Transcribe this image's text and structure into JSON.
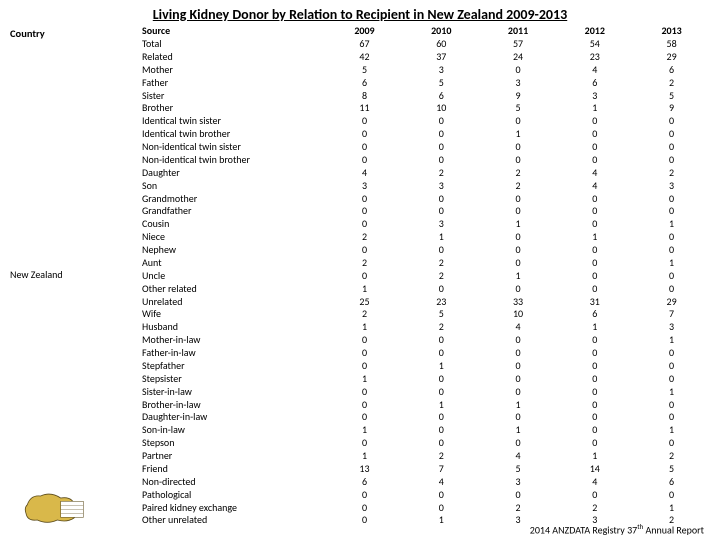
{
  "title": "Living Kidney Donor by Relation to Recipient in New Zealand 2009-2013",
  "country_header": "Country",
  "country_value": "New Zealand",
  "columns": [
    "Source",
    "2009",
    "2010",
    "2011",
    "2012",
    "2013"
  ],
  "rows": [
    {
      "label": "Total",
      "v": [
        "67",
        "60",
        "57",
        "54",
        "58"
      ]
    },
    {
      "label": "Related",
      "v": [
        "42",
        "37",
        "24",
        "23",
        "29"
      ]
    },
    {
      "label": "Mother",
      "v": [
        "5",
        "3",
        "0",
        "4",
        "6"
      ]
    },
    {
      "label": "Father",
      "v": [
        "6",
        "5",
        "3",
        "6",
        "2"
      ]
    },
    {
      "label": "Sister",
      "v": [
        "8",
        "6",
        "9",
        "3",
        "5"
      ]
    },
    {
      "label": "Brother",
      "v": [
        "11",
        "10",
        "5",
        "1",
        "9"
      ]
    },
    {
      "label": "Identical twin sister",
      "v": [
        "0",
        "0",
        "0",
        "0",
        "0"
      ]
    },
    {
      "label": "Identical twin brother",
      "v": [
        "0",
        "0",
        "1",
        "0",
        "0"
      ]
    },
    {
      "label": "Non-identical twin sister",
      "v": [
        "0",
        "0",
        "0",
        "0",
        "0"
      ]
    },
    {
      "label": "Non-identical twin brother",
      "v": [
        "0",
        "0",
        "0",
        "0",
        "0"
      ]
    },
    {
      "label": "Daughter",
      "v": [
        "4",
        "2",
        "2",
        "4",
        "2"
      ]
    },
    {
      "label": "Son",
      "v": [
        "3",
        "3",
        "2",
        "4",
        "3"
      ]
    },
    {
      "label": "Grandmother",
      "v": [
        "0",
        "0",
        "0",
        "0",
        "0"
      ]
    },
    {
      "label": "Grandfather",
      "v": [
        "0",
        "0",
        "0",
        "0",
        "0"
      ]
    },
    {
      "label": "Cousin",
      "v": [
        "0",
        "3",
        "1",
        "0",
        "1"
      ]
    },
    {
      "label": "Niece",
      "v": [
        "2",
        "1",
        "0",
        "1",
        "0"
      ]
    },
    {
      "label": "Nephew",
      "v": [
        "0",
        "0",
        "0",
        "0",
        "0"
      ]
    },
    {
      "label": "Aunt",
      "v": [
        "2",
        "2",
        "0",
        "0",
        "1"
      ]
    },
    {
      "label": "Uncle",
      "v": [
        "0",
        "2",
        "1",
        "0",
        "0"
      ]
    },
    {
      "label": "Other related",
      "v": [
        "1",
        "0",
        "0",
        "0",
        "0"
      ]
    },
    {
      "label": "Unrelated",
      "v": [
        "25",
        "23",
        "33",
        "31",
        "29"
      ]
    },
    {
      "label": "Wife",
      "v": [
        "2",
        "5",
        "10",
        "6",
        "7"
      ]
    },
    {
      "label": "Husband",
      "v": [
        "1",
        "2",
        "4",
        "1",
        "3"
      ]
    },
    {
      "label": "Mother-in-law",
      "v": [
        "0",
        "0",
        "0",
        "0",
        "1"
      ]
    },
    {
      "label": "Father-in-law",
      "v": [
        "0",
        "0",
        "0",
        "0",
        "0"
      ]
    },
    {
      "label": "Stepfather",
      "v": [
        "0",
        "1",
        "0",
        "0",
        "0"
      ]
    },
    {
      "label": "Stepsister",
      "v": [
        "1",
        "0",
        "0",
        "0",
        "0"
      ]
    },
    {
      "label": "Sister-in-law",
      "v": [
        "0",
        "0",
        "0",
        "0",
        "1"
      ]
    },
    {
      "label": "Brother-in-law",
      "v": [
        "0",
        "1",
        "1",
        "0",
        "0"
      ]
    },
    {
      "label": "Daughter-in-law",
      "v": [
        "0",
        "0",
        "0",
        "0",
        "0"
      ]
    },
    {
      "label": "Son-in-law",
      "v": [
        "1",
        "0",
        "1",
        "0",
        "1"
      ]
    },
    {
      "label": "Stepson",
      "v": [
        "0",
        "0",
        "0",
        "0",
        "0"
      ]
    },
    {
      "label": "Partner",
      "v": [
        "1",
        "2",
        "4",
        "1",
        "2"
      ]
    },
    {
      "label": "Friend",
      "v": [
        "13",
        "7",
        "5",
        "14",
        "5"
      ]
    },
    {
      "label": "Non-directed",
      "v": [
        "6",
        "4",
        "3",
        "4",
        "6"
      ]
    },
    {
      "label": "Pathological",
      "v": [
        "0",
        "0",
        "0",
        "0",
        "0"
      ]
    },
    {
      "label": "Paired kidney exchange",
      "v": [
        "0",
        "0",
        "2",
        "2",
        "1"
      ]
    },
    {
      "label": "Other unrelated",
      "v": [
        "0",
        "1",
        "3",
        "3",
        "2"
      ]
    }
  ],
  "footer_prefix": "2014 ANZDATA Registry 37",
  "footer_sup": "th",
  "footer_suffix": " Annual Report",
  "colors": {
    "text": "#000000",
    "background": "#ffffff",
    "logo_fill": "#d9b84a",
    "logo_outline": "#5a4a1a"
  }
}
